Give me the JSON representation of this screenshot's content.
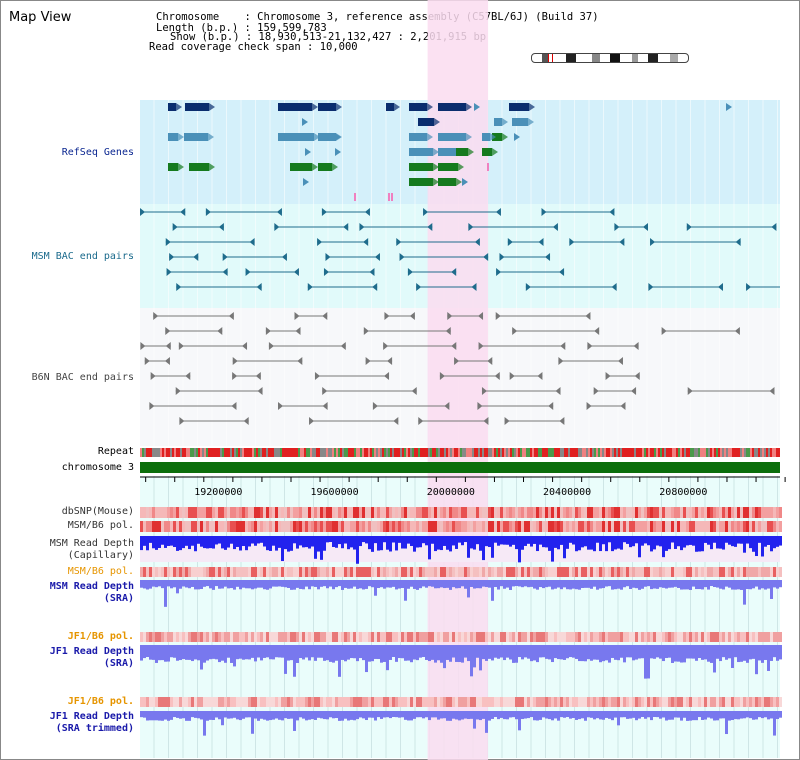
{
  "header": {
    "title": "Map View",
    "chromosome_label": "Chromosome",
    "chromosome_value": ": Chromosome 3, reference assembly (C57BL/6J) (Build 37)",
    "length_label": "Length (b.p.)",
    "length_value": ": 159,599,783",
    "show_label": "Show (b.p.)",
    "show_value": ": 18,930,513-21,132,427 : 2,201,915 bp",
    "coverage_label": "Read coverage check span",
    "coverage_value": ": 10,000"
  },
  "tracks": {
    "refseq": "RefSeq Genes",
    "msm_bac": "MSM BAC end pairs",
    "b6n_bac": "B6N BAC end pairs",
    "repeat": "Repeat",
    "chromosome": "chromosome 3",
    "dbsnp": "dbSNP(Mouse)",
    "msm_pol_1": "MSM/B6 pol.",
    "msm_depth_cap_1": "MSM Read Depth",
    "msm_depth_cap_2": "(Capillary)",
    "msm_pol_2": "MSM/B6 pol.",
    "msm_depth_sra_1": "MSM Read Depth",
    "msm_depth_sra_2": "(SRA)",
    "jf1_pol_1": "JF1/B6 pol.",
    "jf1_depth_1": "JF1 Read Depth",
    "jf1_depth_2": "(SRA)",
    "jf1_pol_2": "JF1/B6 pol.",
    "jf1_trim_1": "JF1 Read Depth",
    "jf1_trim_2": "(SRA trimmed)"
  },
  "axis": {
    "ticks": [
      {
        "value": 19200000,
        "label": "19200000"
      },
      {
        "value": 19600000,
        "label": "19600000"
      },
      {
        "value": 20000000,
        "label": "20000000"
      },
      {
        "value": 20400000,
        "label": "20400000"
      },
      {
        "value": 20800000,
        "label": "20800000"
      }
    ],
    "range": [
      18930513,
      21132427
    ]
  },
  "highlight": {
    "start": 19920000,
    "end": 20128000
  },
  "colors": {
    "refseq_bg": "#d4f0fa",
    "msm_bg": "#e1fafa",
    "b6n_bg": "#f7f8fa",
    "bottom_bg": "#eafdfb",
    "highlight": "#fadcf0",
    "navy": "#0a2d6e",
    "steel": "#4a90b8",
    "green": "#157a1e",
    "teal_line": "#1f6c8c",
    "gray_line": "#777777",
    "chromosome": "#0b6e0b",
    "depth_cap": "#2222ee",
    "depth_sra": "#7878ee",
    "msm_label": "#e69500",
    "sra_label": "#1a1aaa"
  }
}
